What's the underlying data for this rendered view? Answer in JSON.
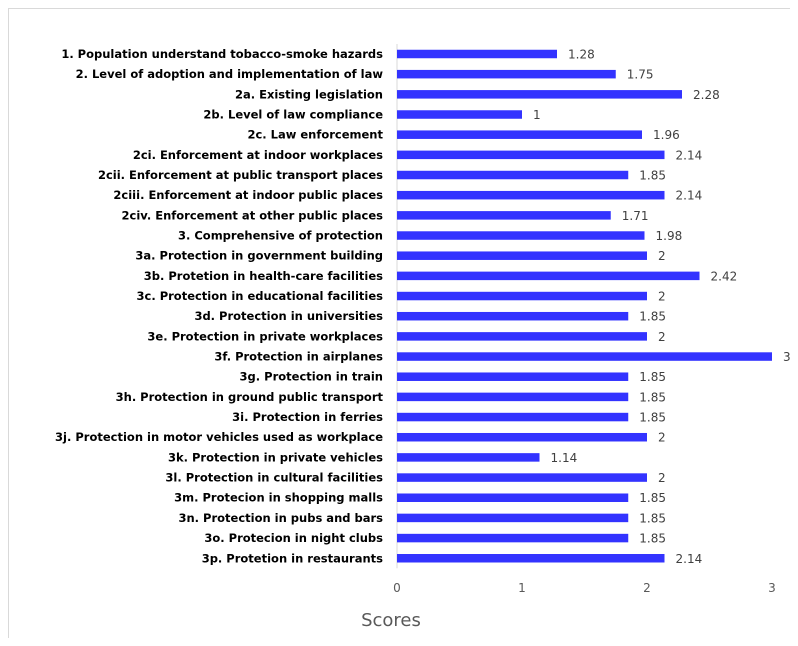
{
  "chart_data": {
    "type": "bar",
    "orientation": "horizontal",
    "categories": [
      "1. Population understand tobacco-smoke hazards",
      "2. Level of adoption and implementation of law",
      "2a. Existing legislation",
      "2b. Level of law compliance",
      "2c. Law enforcement",
      "2ci. Enforcement at indoor workplaces",
      "2cii. Enforcement at public transport places",
      "2ciii. Enforcement at indoor public places",
      "2civ. Enforcement at other public places",
      "3. Comprehensive of protection",
      "3a. Protection in government building",
      "3b. Protetion in health-care facilities",
      "3c. Protection in educational facilities",
      "3d. Protection in universities",
      "3e. Protection in private workplaces",
      "3f. Protection in airplanes",
      "3g. Protection in train",
      "3h. Protection in ground public transport",
      "3i. Protection in ferries",
      "3j. Protection in motor vehicles used as workplace",
      "3k. Protection in private vehicles",
      "3l. Protection in cultural facilities",
      "3m. Protecion in shopping malls",
      "3n. Protection in pubs and bars",
      "3o. Protecion in night clubs",
      "3p. Protetion in restaurants"
    ],
    "values": [
      1.28,
      1.75,
      2.28,
      1,
      1.96,
      2.14,
      1.85,
      2.14,
      1.71,
      1.98,
      2,
      2.42,
      2,
      1.85,
      2,
      3,
      1.85,
      1.85,
      1.85,
      2,
      1.14,
      2,
      1.85,
      1.85,
      1.85,
      2.14
    ],
    "xlabel": "Scores",
    "ylabel": "",
    "xlim": [
      0,
      3
    ],
    "xticks": [
      "0",
      "1",
      "2",
      "3"
    ],
    "grid": false,
    "legend": "none",
    "bar_color": "#3333ff"
  }
}
